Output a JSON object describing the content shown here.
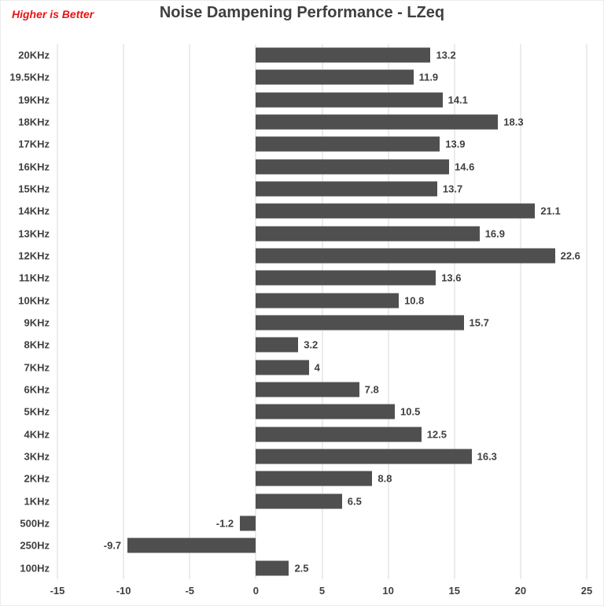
{
  "annotation": {
    "text": "Higher is Better",
    "color": "#E81414"
  },
  "title": "Noise Dampening Performance - LZeq",
  "chart_data": {
    "type": "bar",
    "orientation": "horizontal",
    "title": "Noise Dampening Performance - LZeq",
    "xlabel": "",
    "ylabel": "",
    "categories": [
      "20KHz",
      "19.5KHz",
      "19KHz",
      "18KHz",
      "17KHz",
      "16KHz",
      "15KHz",
      "14KHz",
      "13KHz",
      "12KHz",
      "11KHz",
      "10KHz",
      "9KHz",
      "8KHz",
      "7KHz",
      "6KHz",
      "5KHz",
      "4KHz",
      "3KHz",
      "2KHz",
      "1KHz",
      "500Hz",
      "250Hz",
      "100Hz"
    ],
    "values": [
      13.2,
      11.9,
      14.1,
      18.3,
      13.9,
      14.6,
      13.7,
      21.1,
      16.9,
      22.6,
      13.6,
      10.8,
      15.7,
      3.2,
      4,
      7.8,
      10.5,
      12.5,
      16.3,
      8.8,
      6.5,
      -1.2,
      -9.7,
      2.5
    ],
    "value_labels": [
      "13.2",
      "11.9",
      "14.1",
      "18.3",
      "13.9",
      "14.6",
      "13.7",
      "21.1",
      "16.9",
      "22.6",
      "13.6",
      "10.8",
      "15.7",
      "3.2",
      "4",
      "7.8",
      "10.5",
      "12.5",
      "16.3",
      "8.8",
      "6.5",
      "-1.2",
      "-9.7",
      "2.5"
    ],
    "xlim": [
      -15,
      25
    ],
    "xticks": [
      -15,
      -10,
      -5,
      0,
      5,
      10,
      15,
      20,
      25
    ],
    "grid": true,
    "legend": false,
    "bar_color": "#4F4F4F",
    "gridline_color": "#D9D9D9",
    "text_color": "#3F3F3F"
  }
}
